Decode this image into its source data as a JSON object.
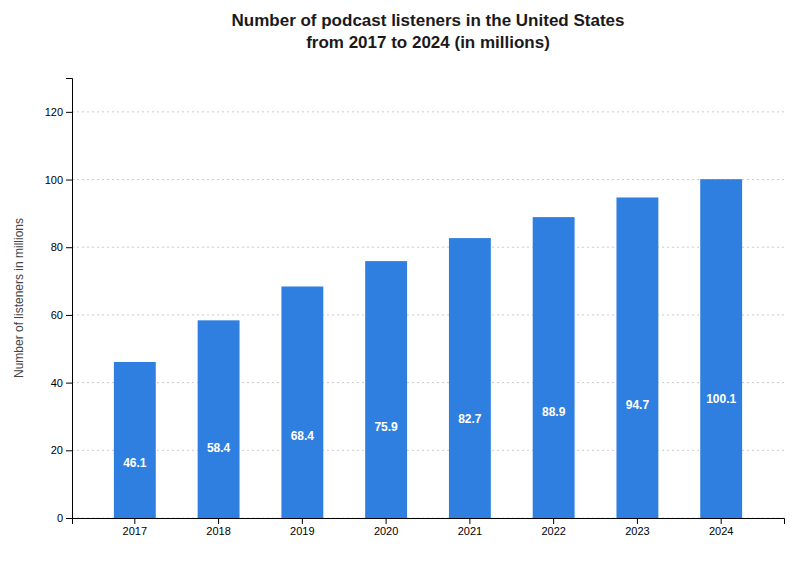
{
  "chart_data": {
    "type": "bar",
    "title": "Number of podcast listeners in the United States\nfrom 2017 to 2024 (in millions)",
    "y_label": "Number of listeners in millions",
    "categories": [
      "2017",
      "2018",
      "2019",
      "2020",
      "2021",
      "2022",
      "2023",
      "2024"
    ],
    "values": [
      46.1,
      58.4,
      68.4,
      75.9,
      82.7,
      88.9,
      94.7,
      100.1
    ],
    "color": "#2f7fe0",
    "ylim": [
      0,
      130
    ],
    "yticks": [
      0,
      20,
      40,
      60,
      80,
      100,
      120
    ],
    "grid": true,
    "data_labels": true
  }
}
